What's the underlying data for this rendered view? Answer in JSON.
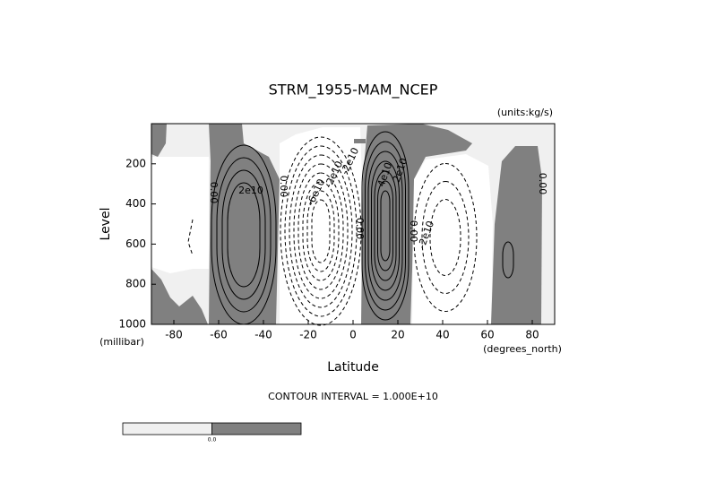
{
  "chart_data": {
    "type": "contour",
    "title": "STRM_1955-MAM_NCEP",
    "units_label": "(units:kg/s)",
    "x_label": "Latitude",
    "x_unit_label": "(degrees_north)",
    "y_label": "Level",
    "y_unit_label": "(millibar)",
    "footnote": "CONTOUR INTERVAL = 1.000E+10",
    "xlim": [
      -90,
      90
    ],
    "xticks": [
      -80,
      -60,
      -40,
      -20,
      0,
      20,
      40,
      60,
      80
    ],
    "ylim": [
      1000,
      0
    ],
    "yticks": [
      200,
      400,
      600,
      800,
      1000
    ],
    "contour_labels": [
      "0.00",
      "2e10",
      "0.00",
      "-6e10",
      "-2e10",
      "-2e10",
      "0.00",
      "4e10",
      "2e10",
      "0.00",
      "-2e10",
      "0.00"
    ],
    "colorbar": {
      "colors": [
        "#f0f0f0",
        "#808080"
      ],
      "labels": [
        "0.0"
      ]
    }
  }
}
